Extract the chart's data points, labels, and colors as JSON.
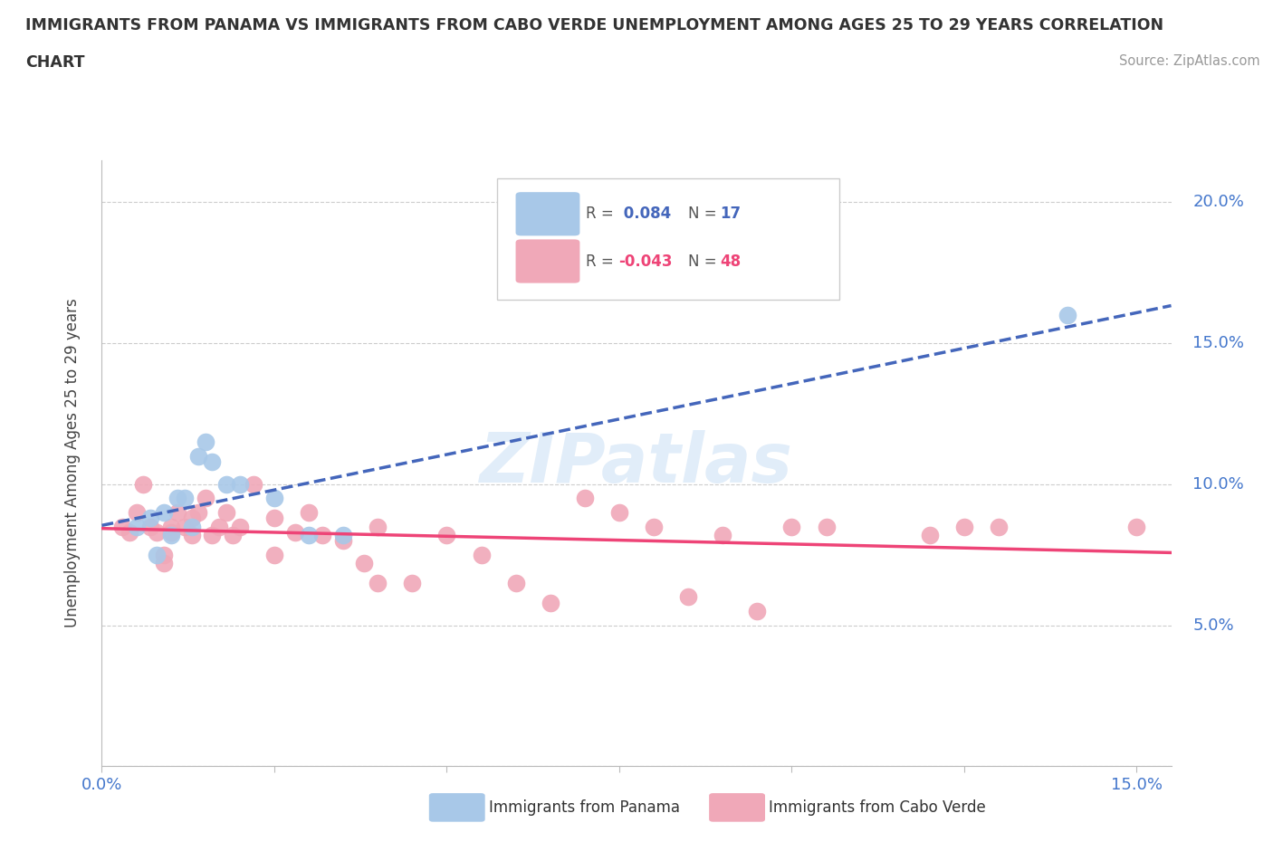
{
  "title_line1": "IMMIGRANTS FROM PANAMA VS IMMIGRANTS FROM CABO VERDE UNEMPLOYMENT AMONG AGES 25 TO 29 YEARS CORRELATION",
  "title_line2": "CHART",
  "source_text": "Source: ZipAtlas.com",
  "xlim": [
    0.0,
    0.155
  ],
  "ylim": [
    0.0,
    0.215
  ],
  "panama_color": "#a8c8e8",
  "cabo_verde_color": "#f0a8b8",
  "panama_line_color": "#4466bb",
  "cabo_verde_line_color": "#ee4477",
  "watermark": "ZIPatlas",
  "legend_r_panama": "R =  0.084",
  "legend_n_panama": "N = 17",
  "legend_r_cabo": "R = -0.043",
  "legend_n_cabo": "N = 48",
  "panama_x": [
    0.005,
    0.007,
    0.008,
    0.009,
    0.01,
    0.011,
    0.012,
    0.013,
    0.014,
    0.015,
    0.016,
    0.018,
    0.02,
    0.025,
    0.03,
    0.035,
    0.14
  ],
  "panama_y": [
    0.085,
    0.088,
    0.075,
    0.09,
    0.082,
    0.095,
    0.095,
    0.085,
    0.11,
    0.115,
    0.108,
    0.1,
    0.1,
    0.095,
    0.082,
    0.082,
    0.16
  ],
  "cabo_verde_x": [
    0.003,
    0.004,
    0.005,
    0.006,
    0.007,
    0.008,
    0.009,
    0.009,
    0.01,
    0.01,
    0.011,
    0.012,
    0.013,
    0.013,
    0.014,
    0.015,
    0.016,
    0.017,
    0.018,
    0.019,
    0.02,
    0.022,
    0.025,
    0.025,
    0.028,
    0.03,
    0.032,
    0.035,
    0.038,
    0.04,
    0.04,
    0.045,
    0.05,
    0.055,
    0.06,
    0.065,
    0.07,
    0.075,
    0.08,
    0.085,
    0.09,
    0.095,
    0.1,
    0.105,
    0.12,
    0.125,
    0.13,
    0.15
  ],
  "cabo_verde_y": [
    0.085,
    0.083,
    0.09,
    0.1,
    0.085,
    0.083,
    0.075,
    0.072,
    0.085,
    0.083,
    0.09,
    0.085,
    0.082,
    0.088,
    0.09,
    0.095,
    0.082,
    0.085,
    0.09,
    0.082,
    0.085,
    0.1,
    0.088,
    0.075,
    0.083,
    0.09,
    0.082,
    0.08,
    0.072,
    0.085,
    0.065,
    0.065,
    0.082,
    0.075,
    0.065,
    0.058,
    0.095,
    0.09,
    0.085,
    0.06,
    0.082,
    0.055,
    0.085,
    0.085,
    0.082,
    0.085,
    0.085,
    0.085
  ],
  "grid_color": "#cccccc",
  "axis_color": "#bbbbbb",
  "tick_label_color": "#4477cc",
  "background_color": "#ffffff",
  "ytick_right_positions": [
    0.05,
    0.1,
    0.15,
    0.2
  ],
  "ytick_right_labels": [
    "5.0%",
    "10.0%",
    "15.0%",
    "20.0%"
  ],
  "xtick_positions": [
    0.0,
    0.025,
    0.05,
    0.075,
    0.1,
    0.125,
    0.15
  ],
  "xtick_labels": [
    "0.0%",
    "",
    "",
    "",
    "",
    "",
    "15.0%"
  ]
}
